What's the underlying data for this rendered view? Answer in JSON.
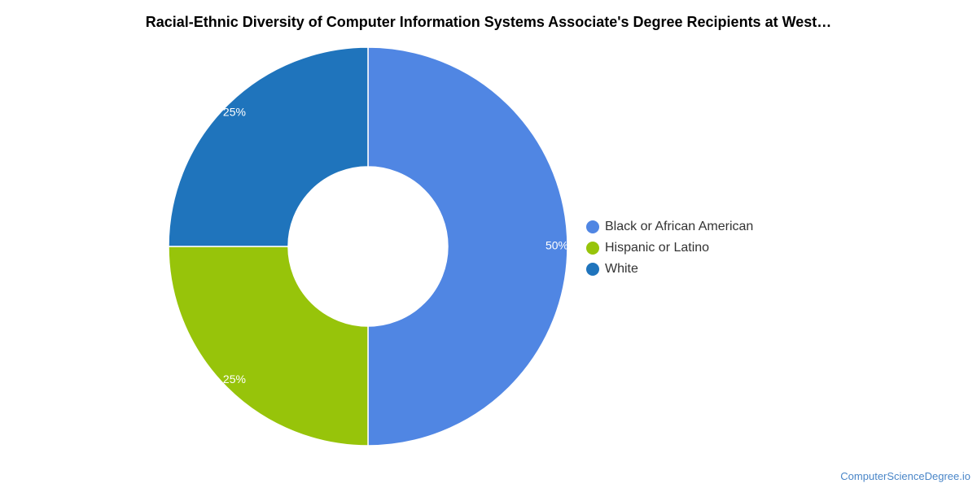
{
  "chart_data": {
    "type": "pie",
    "title": "Racial-Ethnic Diversity of Computer Information Systems Associate's Degree Recipients at West…",
    "categories": [
      "Black or African American",
      "Hispanic or Latino",
      "White"
    ],
    "values": [
      50,
      25,
      25
    ],
    "data_labels": [
      "50%",
      "25%",
      "25%"
    ],
    "colors": [
      "#5086e3",
      "#97c40a",
      "#1f74bc"
    ],
    "donut": true,
    "legend_position": "right"
  },
  "legend": {
    "items": [
      {
        "label": "Black or African American",
        "color": "#5086e3"
      },
      {
        "label": "Hispanic or Latino",
        "color": "#97c40a"
      },
      {
        "label": "White",
        "color": "#1f74bc"
      }
    ]
  },
  "footer": {
    "source": "ComputerScienceDegree.io"
  }
}
